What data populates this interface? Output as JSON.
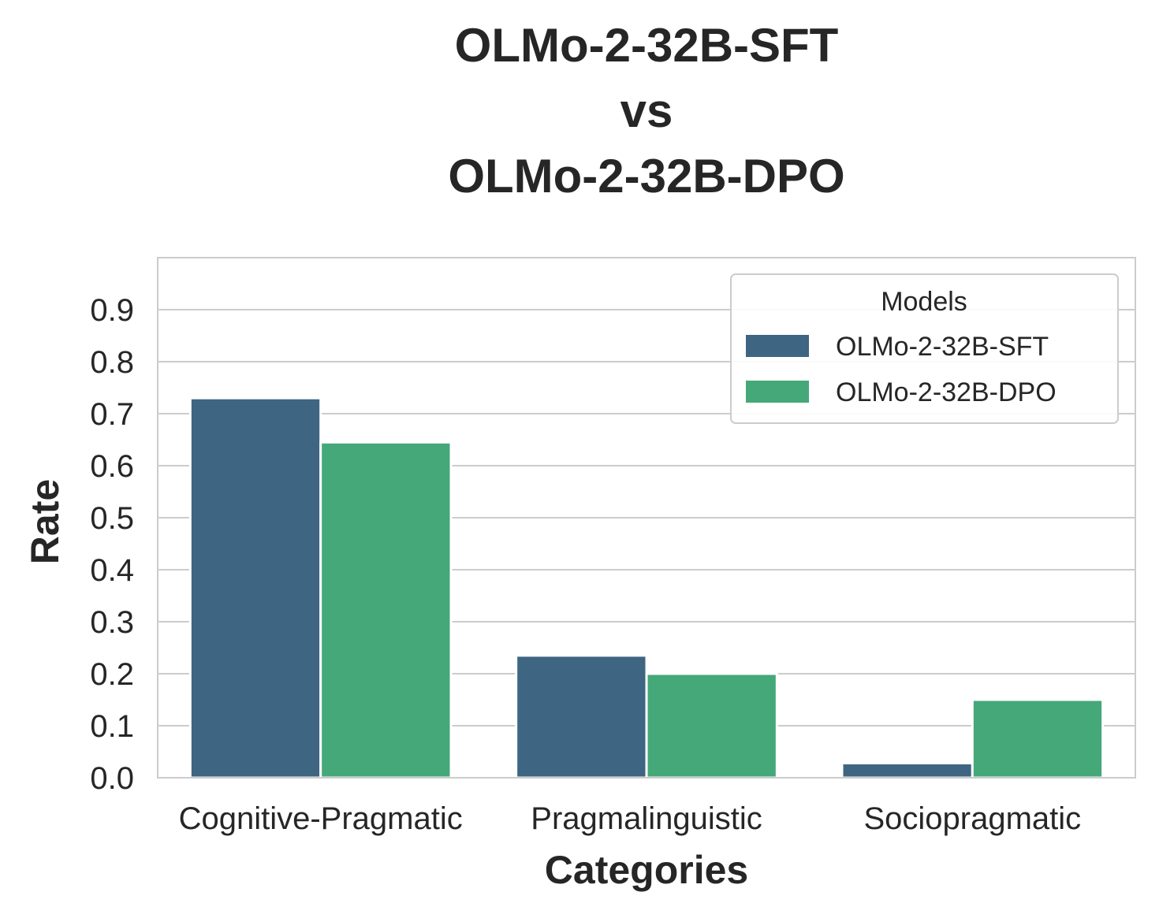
{
  "chart_data": {
    "type": "bar",
    "title_lines": [
      "OLMo-2-32B-SFT",
      "vs",
      "OLMo-2-32B-DPO"
    ],
    "xlabel": "Categories",
    "ylabel": "Rate",
    "categories": [
      "Cognitive-Pragmatic",
      "Pragmalinguistic",
      "Sociopragmatic"
    ],
    "series": [
      {
        "name": "OLMo-2-32B-SFT",
        "color": "#3e6582",
        "values": [
          0.73,
          0.235,
          0.028
        ]
      },
      {
        "name": "OLMo-2-32B-DPO",
        "color": "#45a878",
        "values": [
          0.645,
          0.2,
          0.15
        ]
      }
    ],
    "ylim": [
      0,
      1.0
    ],
    "yticks": [
      "0.0",
      "0.1",
      "0.2",
      "0.3",
      "0.4",
      "0.5",
      "0.6",
      "0.7",
      "0.8",
      "0.9"
    ],
    "grid": true,
    "legend": {
      "title": "Models",
      "placement": "top-right"
    }
  }
}
